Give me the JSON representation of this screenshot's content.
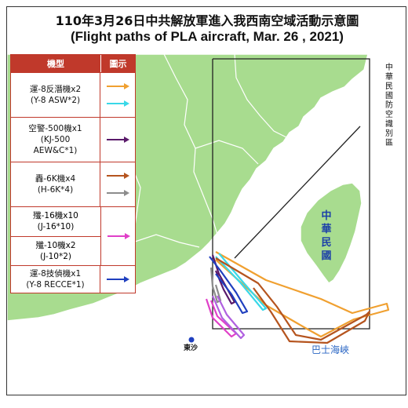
{
  "title": {
    "zh": "110年3月26日中共解放軍進入我西南空域活動示意圖",
    "en": "(Flight paths of PLA aircraft, Mar. 26 , 2021)"
  },
  "legend": {
    "header_type": "機型",
    "header_icon": "圖示",
    "rows": [
      {
        "zh": "運-8反潛機x2",
        "en": "(Y-8 ASW*2)",
        "colors": [
          "#f0a030",
          "#39d8e8"
        ]
      },
      {
        "zh": "空警-500機x1",
        "en": "(KJ-500",
        "en2": "AEW&C*1)",
        "colors": [
          "#5a1a6a"
        ]
      },
      {
        "zh": "轟-6K機x4",
        "en": "(H-6K*4)",
        "colors": [
          "#b5541e",
          "#8c8c8c"
        ]
      },
      {
        "zh_a": "殲-16機x10",
        "en_a": "(J-16*10)",
        "zh_b": "殲-10機x2",
        "en_b": "(J-10*2)",
        "colors": [
          "#e040c8"
        ]
      },
      {
        "zh": "運-8技偵機x1",
        "en": "(Y-8 RECCE*1)",
        "colors": [
          "#1f3fbf"
        ]
      }
    ]
  },
  "map_labels": {
    "adiz_vertical": "中華民國防空識別區",
    "taiwan": "中華民國",
    "bashi": "巴士海峽",
    "dongsha": "東沙"
  },
  "colors": {
    "land_mainland": "#a8dc8f",
    "land_taiwan": "#a8dc8f",
    "land_border": "#ffffff",
    "sea": "#ffffff",
    "legend_header": "#c0392b",
    "dongsha_dot": "#1f3fbf"
  }
}
